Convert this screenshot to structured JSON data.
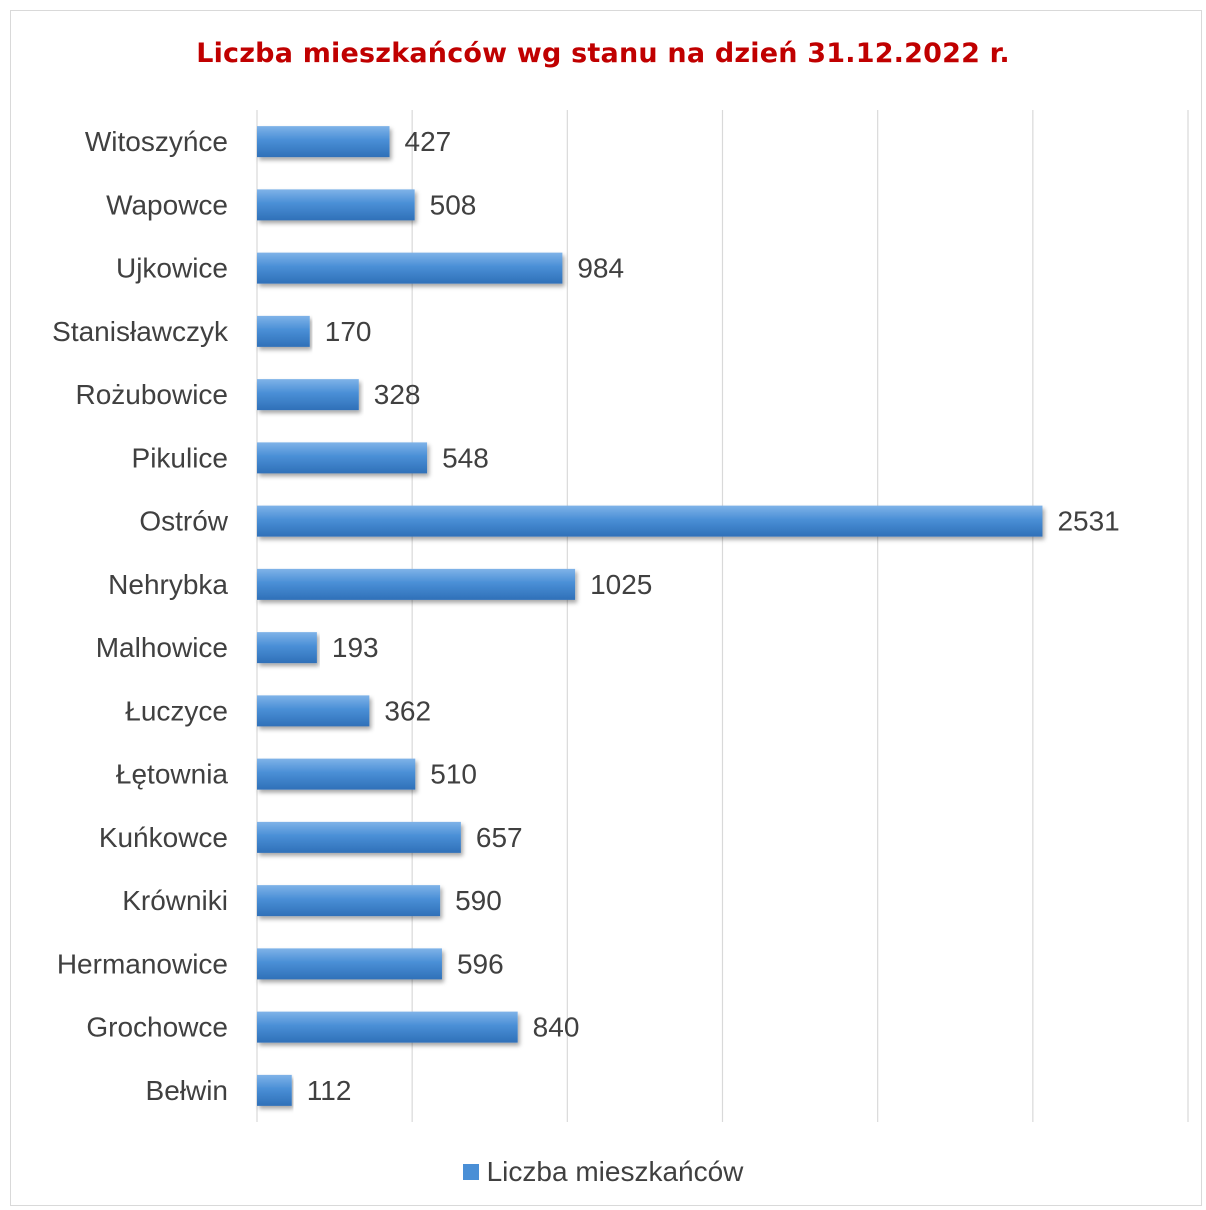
{
  "chart_data": {
    "type": "bar",
    "orientation": "horizontal",
    "title": "Liczba mieszkańców wg stanu na dzień 31.12.2022 r.",
    "categories": [
      "Witoszyńce",
      "Wapowce",
      "Ujkowice",
      "Stanisławczyk",
      "Rożubowice",
      "Pikulice",
      "Ostrów",
      "Nehrybka",
      "Malhowice",
      "Łuczyce",
      "Łętownia",
      "Kuńkowce",
      "Krówniki",
      "Hermanowice",
      "Grochowce",
      "Bełwin"
    ],
    "series": [
      {
        "name": "Liczba mieszkańców",
        "values": [
          427,
          508,
          984,
          170,
          328,
          548,
          2531,
          1025,
          193,
          362,
          510,
          657,
          590,
          596,
          840,
          112
        ]
      }
    ],
    "xlim": [
      0,
      3000
    ],
    "grid": true,
    "legend_position": "bottom",
    "colors": {
      "bar": "#4a8fd6",
      "title": "#c00000",
      "grid": "#d9d9d9"
    }
  }
}
